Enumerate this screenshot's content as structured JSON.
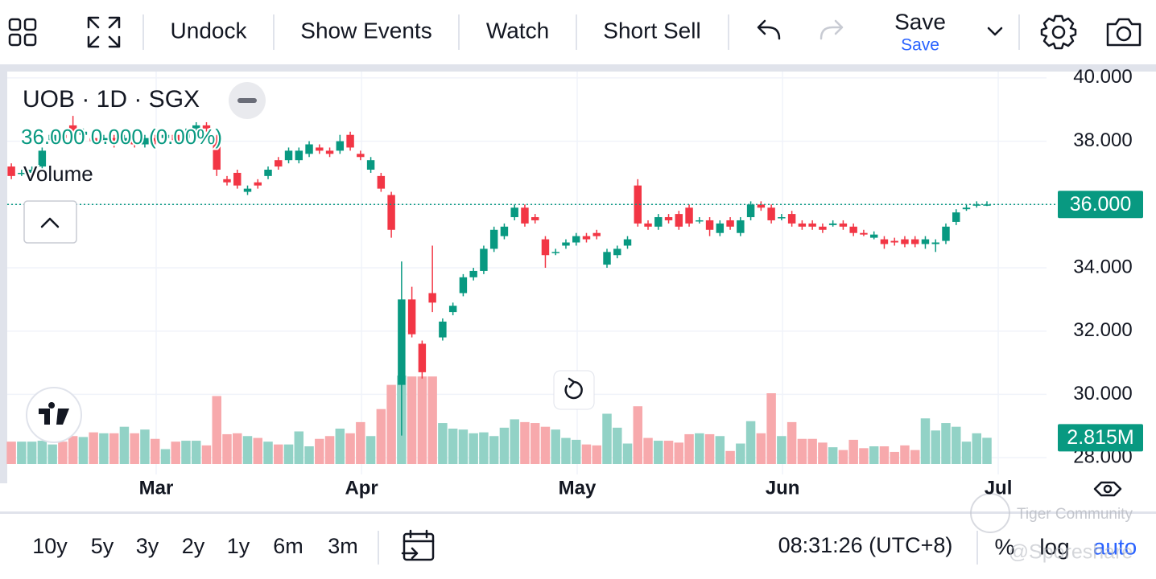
{
  "toolbar": {
    "buttons": [
      "Undock",
      "Show Events",
      "Watch",
      "Short Sell"
    ],
    "save": "Save",
    "save_sub": "Save"
  },
  "legend": {
    "symbol": "UOB · 1D · SGX",
    "quote": "36.000  0.000 (0.00%)",
    "volume": "Volume"
  },
  "range_buttons": [
    "10y",
    "5y",
    "3y",
    "2y",
    "1y",
    "6m",
    "3m"
  ],
  "footer": {
    "time": "08:31:26 (UTC+8)",
    "percent": "%",
    "log": "log",
    "auto": "auto"
  },
  "watermark": [
    "Tiger Community",
    "@Sporeshare"
  ],
  "chart_data": {
    "type": "candlestick",
    "up_color": "#089981",
    "down_color": "#f23645",
    "volume_up_color": "#92d2c6",
    "volume_down_color": "#f7a9ac",
    "ylim": [
      27.8,
      40.2
    ],
    "yticks": [
      {
        "value": 28,
        "label": "28.000"
      },
      {
        "value": 30,
        "label": "30.000"
      },
      {
        "value": 32,
        "label": "32.000"
      },
      {
        "value": 34,
        "label": "34.000"
      },
      {
        "value": 36,
        "label": "36.000"
      },
      {
        "value": 38,
        "label": "38.000"
      },
      {
        "value": 40,
        "label": "40.000"
      }
    ],
    "xlim": [
      -0.4,
      100.8
    ],
    "xticks": [
      {
        "value": 14.1,
        "label": "Mar"
      },
      {
        "value": 34.1,
        "label": "Apr"
      },
      {
        "value": 55.1,
        "label": "May"
      },
      {
        "value": 75.1,
        "label": "Jun"
      },
      {
        "value": 96.1,
        "label": "Jul"
      }
    ],
    "grid": true,
    "last_close_label": "36.000",
    "last_volume_label": "2.815M",
    "open": [
      37.2,
      37.0,
      37.0,
      37.2,
      38.0,
      38.2,
      38.5,
      38.2,
      38.1,
      38.0,
      38.1,
      38.0,
      38.0,
      37.9,
      38.1,
      38.1,
      38.2,
      38.1,
      38.4,
      38.5,
      38.0,
      36.8,
      37.0,
      36.4,
      36.7,
      36.9,
      37.4,
      37.4,
      37.4,
      37.6,
      37.8,
      37.7,
      37.7,
      38.2,
      37.6,
      37.1,
      36.9,
      36.3,
      30.3,
      33.0,
      31.6,
      33.2,
      31.8,
      32.6,
      33.2,
      33.7,
      33.9,
      34.6,
      35.0,
      35.6,
      35.9,
      35.6,
      34.9,
      34.5,
      34.7,
      34.8,
      35.0,
      35.1,
      34.1,
      34.4,
      34.7,
      36.6,
      35.4,
      35.3,
      35.6,
      35.7,
      35.9,
      35.5,
      35.5,
      35.1,
      35.5,
      35.1,
      35.6,
      36.0,
      35.9,
      35.6,
      35.7,
      35.4,
      35.4,
      35.3,
      35.35,
      35.4,
      35.3,
      35.1,
      34.95,
      34.9,
      34.85,
      34.9,
      34.9,
      34.75,
      34.75,
      34.85,
      35.45,
      35.85,
      36.0,
      36.0
    ],
    "high": [
      37.3,
      37.1,
      37.2,
      37.8,
      38.3,
      38.3,
      38.8,
      38.4,
      38.2,
      38.2,
      38.2,
      38.2,
      38.1,
      38.2,
      38.2,
      38.3,
      38.3,
      38.4,
      38.6,
      38.6,
      38.2,
      36.9,
      37.1,
      36.6,
      36.8,
      37.2,
      37.5,
      37.8,
      37.8,
      38.0,
      37.9,
      37.8,
      38.2,
      38.3,
      37.7,
      37.5,
      37.0,
      36.4,
      34.2,
      33.4,
      31.7,
      34.7,
      32.4,
      32.9,
      33.8,
      34.0,
      34.7,
      35.3,
      35.4,
      36.0,
      36.0,
      35.7,
      35.0,
      34.6,
      34.9,
      35.1,
      35.1,
      35.2,
      34.6,
      34.7,
      35.0,
      36.8,
      35.5,
      35.7,
      35.7,
      35.8,
      36.0,
      35.6,
      35.6,
      35.5,
      35.6,
      35.6,
      36.1,
      36.1,
      36.0,
      35.7,
      35.8,
      35.5,
      35.5,
      35.4,
      35.5,
      35.5,
      35.4,
      35.2,
      35.15,
      35.0,
      34.95,
      35.0,
      35.0,
      35.0,
      34.9,
      35.4,
      35.85,
      36.0,
      36.1,
      36.1
    ],
    "low": [
      36.8,
      36.9,
      36.9,
      37.1,
      37.9,
      38.0,
      38.1,
      38.1,
      37.9,
      37.9,
      37.8,
      37.9,
      37.8,
      37.8,
      37.9,
      38.0,
      37.9,
      38.0,
      38.3,
      38.3,
      36.9,
      36.6,
      36.5,
      36.3,
      36.5,
      36.8,
      37.1,
      37.3,
      37.3,
      37.5,
      37.6,
      37.5,
      37.6,
      37.7,
      37.4,
      37.0,
      36.4,
      34.95,
      28.7,
      31.8,
      30.5,
      32.6,
      31.7,
      32.5,
      33.1,
      33.6,
      33.8,
      34.5,
      34.9,
      35.5,
      35.3,
      35.4,
      34.0,
      34.4,
      34.6,
      34.7,
      34.8,
      34.9,
      34.0,
      34.3,
      34.6,
      35.3,
      35.2,
      35.2,
      35.4,
      35.2,
      35.3,
      35.4,
      35.0,
      35.0,
      35.2,
      35.0,
      35.5,
      35.8,
      35.4,
      35.5,
      35.3,
      35.2,
      35.2,
      35.1,
      35.3,
      35.2,
      35.0,
      35.0,
      34.9,
      34.6,
      34.7,
      34.65,
      34.65,
      34.6,
      34.5,
      34.75,
      35.35,
      35.8,
      35.9,
      35.95
    ],
    "close": [
      36.9,
      37.0,
      37.1,
      37.7,
      38.2,
      38.1,
      38.2,
      38.3,
      38.0,
      38.1,
      37.9,
      38.1,
      37.9,
      38.1,
      38.0,
      38.2,
      38.0,
      38.3,
      38.5,
      38.4,
      37.1,
      36.7,
      36.6,
      36.5,
      36.6,
      37.1,
      37.2,
      37.7,
      37.7,
      37.9,
      37.7,
      37.6,
      38.0,
      37.8,
      37.5,
      37.4,
      36.5,
      35.2,
      33.0,
      31.9,
      30.7,
      32.9,
      32.3,
      32.8,
      33.7,
      33.9,
      34.6,
      35.2,
      35.3,
      35.9,
      35.4,
      35.5,
      34.4,
      34.5,
      34.8,
      35.0,
      34.9,
      35.0,
      34.5,
      34.6,
      34.9,
      35.4,
      35.3,
      35.6,
      35.5,
      35.3,
      35.4,
      35.5,
      35.2,
      35.4,
      35.3,
      35.5,
      36.0,
      35.9,
      35.5,
      35.6,
      35.4,
      35.3,
      35.3,
      35.2,
      35.4,
      35.3,
      35.1,
      35.05,
      35.05,
      34.75,
      34.8,
      34.75,
      34.75,
      34.9,
      34.8,
      35.3,
      35.75,
      35.9,
      36.0,
      36.0
    ],
    "volume": [
      2.4,
      2.4,
      2.4,
      2.5,
      2.1,
      2.4,
      3.0,
      2.9,
      3.4,
      3.3,
      3.3,
      4.0,
      3.3,
      3.7,
      2.7,
      1.6,
      2.4,
      2.5,
      2.5,
      2.0,
      7.3,
      3.2,
      3.3,
      3.0,
      2.8,
      2.4,
      2.1,
      2.1,
      3.5,
      1.9,
      2.7,
      3.0,
      3.8,
      3.3,
      4.5,
      3.0,
      5.9,
      8.5,
      9.5,
      9.4,
      9.4,
      9.4,
      4.4,
      3.8,
      3.7,
      3.3,
      3.4,
      3.0,
      3.9,
      4.8,
      4.5,
      4.4,
      4.0,
      3.7,
      2.8,
      2.6,
      2.1,
      2.0,
      5.4,
      3.9,
      2.2,
      6.2,
      2.8,
      2.5,
      2.5,
      2.3,
      3.2,
      3.3,
      3.2,
      3.0,
      1.4,
      2.2,
      4.6,
      3.3,
      7.6,
      3.0,
      4.5,
      2.7,
      2.7,
      2.3,
      1.8,
      1.5,
      2.6,
      1.7,
      1.9,
      1.9,
      1.3,
      2.0,
      1.5,
      4.9,
      3.6,
      4.4,
      4.0,
      2.4,
      3.3,
      2.815
    ]
  }
}
